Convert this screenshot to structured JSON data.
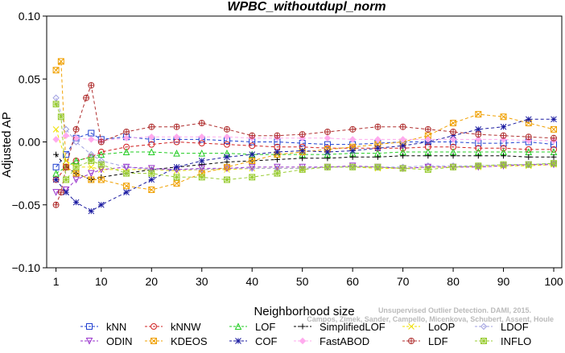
{
  "chart_data": {
    "type": "line",
    "title": "WPBC_withoutdupl_norm",
    "xlabel": "Neighborhood size",
    "ylabel": "Adjusted AP",
    "xlim": [
      0,
      100
    ],
    "ylim": [
      -0.1,
      0.1
    ],
    "x_ticks": [
      "1",
      "10",
      "20",
      "30",
      "40",
      "50",
      "60",
      "70",
      "80",
      "90",
      "100"
    ],
    "y_ticks": [
      "0.10",
      "0.05",
      "0.00",
      "−0.05",
      "−0.10"
    ],
    "grid": false,
    "legend_position": "bottom",
    "watermark": "Campos, Zimek, Sander, Campello, Micenkova, Schubert, Assent, Houle",
    "watermark_left": "Unsupervised Outlier Detection. DAMI, 2015.",
    "series": [
      {
        "name": "kNN",
        "color": "#1f3fd0",
        "marker": "square",
        "x": [
          1,
          3,
          5,
          8,
          10,
          15,
          20,
          25,
          30,
          35,
          40,
          45,
          50,
          55,
          60,
          65,
          70,
          75,
          80,
          85,
          90,
          95,
          100
        ],
        "y": [
          -0.02,
          -0.01,
          0.003,
          0.007,
          0.002,
          0.004,
          0.002,
          0.002,
          0.002,
          0.001,
          0,
          0,
          -0.001,
          -0.002,
          -0.002,
          -0.001,
          0,
          0,
          0,
          -0.001,
          -0.001,
          0,
          -0.002
        ]
      },
      {
        "name": "kNNW",
        "color": "#d02020",
        "marker": "circle",
        "x": [
          1,
          3,
          5,
          8,
          10,
          15,
          20,
          25,
          30,
          35,
          40,
          45,
          50,
          55,
          60,
          65,
          70,
          75,
          80,
          85,
          90,
          95,
          100
        ],
        "y": [
          -0.03,
          -0.02,
          -0.015,
          -0.012,
          -0.008,
          -0.004,
          -0.002,
          0,
          -0.001,
          -0.002,
          -0.003,
          -0.004,
          -0.004,
          -0.005,
          -0.005,
          -0.005,
          -0.005,
          -0.004,
          -0.004,
          -0.005,
          -0.005,
          -0.006,
          -0.006
        ]
      },
      {
        "name": "LOF",
        "color": "#22cc22",
        "marker": "triangle",
        "x": [
          1,
          3,
          5,
          8,
          10,
          15,
          20,
          25,
          30,
          35,
          40,
          45,
          50,
          55,
          60,
          65,
          70,
          75,
          80,
          85,
          90,
          95,
          100
        ],
        "y": [
          -0.025,
          -0.02,
          -0.015,
          -0.012,
          -0.01,
          -0.008,
          -0.008,
          -0.009,
          -0.009,
          -0.009,
          -0.01,
          -0.01,
          -0.01,
          -0.01,
          -0.009,
          -0.009,
          -0.008,
          -0.008,
          -0.008,
          -0.008,
          -0.008,
          -0.008,
          -0.008
        ]
      },
      {
        "name": "SimplifiedLOF",
        "color": "#000000",
        "marker": "plus",
        "x": [
          1,
          3,
          5,
          8,
          10,
          15,
          20,
          25,
          30,
          35,
          40,
          45,
          50,
          55,
          60,
          65,
          70,
          75,
          80,
          85,
          90,
          95,
          100
        ],
        "y": [
          -0.01,
          -0.02,
          -0.025,
          -0.03,
          -0.028,
          -0.025,
          -0.022,
          -0.02,
          -0.018,
          -0.016,
          -0.015,
          -0.014,
          -0.013,
          -0.013,
          -0.012,
          -0.012,
          -0.011,
          -0.011,
          -0.011,
          -0.011,
          -0.011,
          -0.012,
          -0.012
        ]
      },
      {
        "name": "LoOP",
        "color": "#f0e000",
        "marker": "cross",
        "x": [
          1,
          3,
          5,
          8,
          10,
          15,
          20,
          25,
          30,
          35,
          40,
          45,
          50,
          55,
          60,
          65,
          70,
          75,
          80,
          85,
          90,
          95,
          100
        ],
        "y": [
          0.01,
          -0.015,
          -0.02,
          -0.02,
          -0.022,
          -0.022,
          -0.022,
          -0.023,
          -0.022,
          -0.022,
          -0.021,
          -0.021,
          -0.021,
          -0.02,
          -0.02,
          -0.021,
          -0.021,
          -0.02,
          -0.02,
          -0.02,
          -0.019,
          -0.019,
          -0.018
        ]
      },
      {
        "name": "LDOF",
        "color": "#a0a0e0",
        "marker": "diamond",
        "x": [
          1,
          3,
          5,
          8,
          10,
          15,
          20,
          25,
          30,
          35,
          40,
          45,
          50,
          55,
          60,
          65,
          70,
          75,
          80,
          85,
          90,
          95,
          100
        ],
        "y": [
          0.035,
          0.01,
          0,
          -0.01,
          -0.015,
          -0.02,
          -0.022,
          -0.022,
          -0.022,
          -0.021,
          -0.021,
          -0.021,
          -0.021,
          -0.02,
          -0.02,
          -0.02,
          -0.02,
          -0.019,
          -0.019,
          -0.019,
          -0.018,
          -0.018,
          -0.017
        ]
      },
      {
        "name": "ODIN",
        "color": "#9933cc",
        "marker": "triangle-down",
        "x": [
          1,
          3,
          5,
          8,
          10,
          15,
          20,
          25,
          30,
          35,
          40,
          45,
          50,
          55,
          60,
          65,
          70,
          75,
          80,
          85,
          90,
          95,
          100
        ],
        "y": [
          -0.04,
          -0.038,
          -0.03,
          -0.025,
          -0.022,
          -0.02,
          -0.021,
          -0.022,
          -0.021,
          -0.021,
          -0.02,
          -0.02,
          -0.02,
          -0.02,
          -0.019,
          -0.02,
          -0.021,
          -0.02,
          -0.02,
          -0.02,
          -0.019,
          -0.018,
          -0.018
        ]
      },
      {
        "name": "KDEOS",
        "color": "#f0a000",
        "marker": "square-x",
        "x": [
          1,
          2,
          3,
          5,
          8,
          10,
          15,
          20,
          25,
          30,
          35,
          40,
          45,
          50,
          55,
          60,
          65,
          70,
          75,
          80,
          85,
          90,
          95,
          100
        ],
        "y": [
          0.057,
          0.064,
          -0.02,
          -0.025,
          -0.03,
          -0.03,
          -0.035,
          -0.038,
          -0.033,
          -0.025,
          -0.02,
          -0.015,
          -0.01,
          -0.008,
          -0.006,
          -0.004,
          -0.002,
          0,
          0.005,
          0.015,
          0.022,
          0.02,
          0.015,
          0.01
        ]
      },
      {
        "name": "COF",
        "color": "#1a1aa0",
        "marker": "star",
        "x": [
          1,
          3,
          5,
          8,
          10,
          15,
          20,
          25,
          30,
          35,
          40,
          45,
          50,
          55,
          60,
          65,
          70,
          75,
          80,
          85,
          90,
          95,
          100
        ],
        "y": [
          -0.03,
          -0.04,
          -0.048,
          -0.055,
          -0.05,
          -0.04,
          -0.03,
          -0.02,
          -0.015,
          -0.012,
          -0.01,
          -0.008,
          -0.007,
          -0.008,
          -0.007,
          -0.005,
          -0.003,
          0,
          0.005,
          0.01,
          0.012,
          0.018,
          0.018
        ]
      },
      {
        "name": "FastABOD",
        "color": "#ffaaee",
        "marker": "diamond-filled",
        "x": [
          1,
          3,
          5,
          8,
          10,
          15,
          20,
          25,
          30,
          35,
          40,
          45,
          50,
          55,
          60,
          65,
          70,
          75,
          80,
          85,
          90,
          95,
          100
        ],
        "y": [
          0.002,
          0.005,
          0.003,
          0.002,
          0.001,
          0.003,
          0.004,
          0.004,
          0.004,
          0.004,
          0.003,
          0.003,
          0.003,
          0.003,
          0.002,
          0.002,
          0.002,
          0.002,
          0.002,
          0.002,
          0.002,
          0.001,
          0.001
        ]
      },
      {
        "name": "LDF",
        "color": "#b03030",
        "marker": "circle-plus",
        "x": [
          1,
          2,
          3,
          5,
          7,
          8,
          10,
          15,
          20,
          25,
          30,
          35,
          40,
          45,
          50,
          55,
          60,
          65,
          70,
          75,
          80,
          85,
          90,
          95,
          100
        ],
        "y": [
          -0.05,
          -0.04,
          -0.02,
          0.01,
          0.035,
          0.045,
          0.0,
          0.008,
          0.012,
          0.012,
          0.015,
          0.01,
          0.005,
          0.005,
          0.006,
          0.008,
          0.01,
          0.012,
          0.012,
          0.01,
          0.008,
          0.006,
          0.005,
          0.004,
          0.003
        ]
      },
      {
        "name": "INFLO",
        "color": "#99cc33",
        "marker": "square-star",
        "x": [
          1,
          2,
          3,
          5,
          8,
          10,
          15,
          20,
          25,
          30,
          35,
          40,
          45,
          50,
          55,
          60,
          65,
          70,
          75,
          80,
          85,
          90,
          95,
          100
        ],
        "y": [
          0.03,
          0.02,
          -0.03,
          -0.02,
          -0.015,
          -0.018,
          -0.025,
          -0.025,
          -0.028,
          -0.028,
          -0.03,
          -0.028,
          -0.025,
          -0.022,
          -0.02,
          -0.02,
          -0.02,
          -0.021,
          -0.022,
          -0.02,
          -0.019,
          -0.018,
          -0.018,
          -0.017
        ]
      }
    ]
  }
}
